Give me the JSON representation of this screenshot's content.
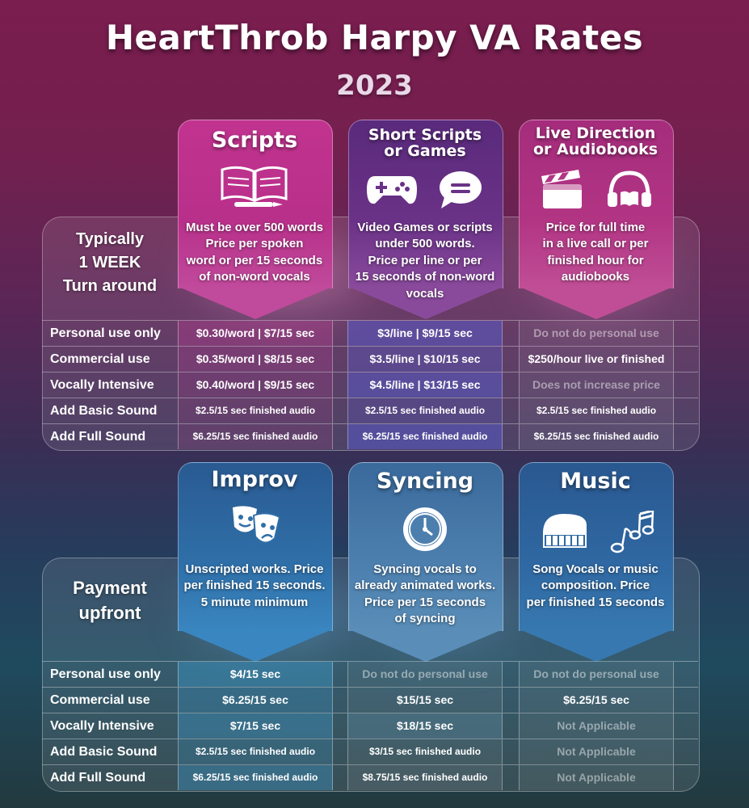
{
  "title": "HeartThrob Harpy VA Rates",
  "year": "2023",
  "colors": {
    "scripts": "#b8308a",
    "short": "#5a2a7c",
    "live": "#a0307a",
    "blue": "#2f6fa8"
  },
  "section1": {
    "side_label": [
      "Typically",
      "1 WEEK",
      "Turn around"
    ],
    "columns": [
      {
        "title": [
          "Scripts"
        ],
        "icon": "book-pen-icon",
        "desc": [
          "Must be over 500 words",
          "Price per spoken",
          "word or per 15 seconds",
          "of non-word vocals"
        ]
      },
      {
        "title": [
          "Short Scripts",
          "or Games"
        ],
        "icon": "gamepad-chat-icon",
        "desc": [
          "Video Games or scripts",
          "under 500 words.",
          "Price per line or per",
          "15 seconds of non-word",
          "vocals"
        ]
      },
      {
        "title": [
          "Live Direction",
          "or Audiobooks"
        ],
        "icon": "clapper-headphones-icon",
        "desc": [
          "Price for full time",
          "in a live call or per",
          "finished hour for",
          "audiobooks"
        ]
      }
    ],
    "rows": [
      {
        "label": "Personal use only",
        "cells": [
          "$0.30/word | $7/15 sec",
          "$3/line | $9/15 sec",
          "Do not do personal use"
        ]
      },
      {
        "label": "Commercial use",
        "cells": [
          "$0.35/word | $8/15 sec",
          "$3.5/line | $10/15 sec",
          "$250/hour live or finished"
        ]
      },
      {
        "label": "Vocally Intensive",
        "cells": [
          "$0.40/word | $9/15 sec",
          "$4.5/line | $13/15 sec",
          "Does not increase price"
        ]
      },
      {
        "label": "Add Basic Sound",
        "cells": [
          "$2.5/15 sec finished audio",
          "$2.5/15 sec finished audio",
          "$2.5/15 sec finished audio"
        ]
      },
      {
        "label": "Add Full Sound",
        "cells": [
          "$6.25/15 sec finished audio",
          "$6.25/15 sec finished audio",
          "$6.25/15 sec finished audio"
        ]
      }
    ]
  },
  "section2": {
    "side_label": [
      "Payment",
      "upfront"
    ],
    "columns": [
      {
        "title": [
          "Improv"
        ],
        "icon": "theater-masks-icon",
        "desc": [
          "Unscripted works. Price",
          "per finished 15 seconds.",
          "5 minute minimum"
        ]
      },
      {
        "title": [
          "Syncing"
        ],
        "icon": "clock-icon",
        "desc": [
          "Syncing vocals to",
          "already animated works.",
          "Price per 15 seconds",
          "of syncing"
        ]
      },
      {
        "title": [
          "Music"
        ],
        "icon": "piano-notes-icon",
        "desc": [
          "Song Vocals or music",
          "composition. Price",
          "per finished 15 seconds"
        ]
      }
    ],
    "rows": [
      {
        "label": "Personal use only",
        "cells": [
          "$4/15 sec",
          "Do not do personal use",
          "Do not do personal use"
        ]
      },
      {
        "label": "Commercial use",
        "cells": [
          "$6.25/15 sec",
          "$15/15 sec",
          "$6.25/15 sec"
        ]
      },
      {
        "label": "Vocally Intensive",
        "cells": [
          "$7/15 sec",
          "$18/15 sec",
          "Not Applicable"
        ]
      },
      {
        "label": "Add Basic Sound",
        "cells": [
          "$2.5/15 sec finished audio",
          "$3/15 sec finished audio",
          "Not Applicable"
        ]
      },
      {
        "label": "Add Full Sound",
        "cells": [
          "$6.25/15 sec finished audio",
          "$8.75/15 sec finished audio",
          "Not Applicable"
        ]
      }
    ]
  }
}
